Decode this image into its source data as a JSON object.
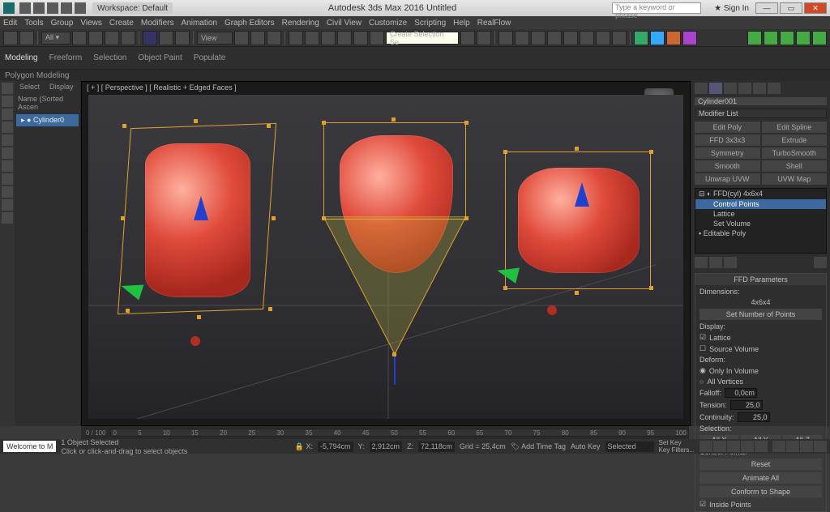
{
  "titlebar": {
    "app_title": "Autodesk 3ds Max 2016   Untitled",
    "search_placeholder": "Type a keyword or phrase",
    "signin": "Sign In",
    "workspace_label": "Workspace: Default"
  },
  "menu": [
    "Edit",
    "Tools",
    "Group",
    "Views",
    "Create",
    "Modifiers",
    "Animation",
    "Graph Editors",
    "Rendering",
    "Civil View",
    "Customize",
    "Scripting",
    "Help",
    "RealFlow"
  ],
  "ribbon": {
    "tabs": [
      "Modeling",
      "Freeform",
      "Selection",
      "Object Paint",
      "Populate"
    ],
    "sub": "Polygon Modeling"
  },
  "toolbar": {
    "sel_set_placeholder": "Create Selection Se",
    "view_dd": "View"
  },
  "scene_explorer": {
    "tabs": [
      "Select",
      "Display"
    ],
    "header": "Name (Sorted Ascen",
    "items": [
      "Cylinder0"
    ]
  },
  "viewport": {
    "label": "[ + ] [ Perspective ] [ Realistic + Edged Faces ]"
  },
  "command_panel": {
    "object_name": "Cylinder001",
    "modifier_list": "Modifier List",
    "buttons": [
      "Edit Poly",
      "Edit Spline",
      "FFD 3x3x3",
      "Extrude",
      "Symmetry",
      "TurboSmooth",
      "Smooth",
      "Shell",
      "Unwrap UVW",
      "UVW Map"
    ],
    "stack": [
      {
        "label": "FFD(cyl) 4x6x4",
        "sel": false,
        "indent": 0
      },
      {
        "label": "Control Points",
        "sel": true,
        "indent": 1
      },
      {
        "label": "Lattice",
        "sel": false,
        "indent": 1
      },
      {
        "label": "Set Volume",
        "sel": false,
        "indent": 1
      },
      {
        "label": "Editable Poly",
        "sel": false,
        "indent": 0
      }
    ],
    "ffd": {
      "title": "FFD Parameters",
      "dims_label": "Dimensions:",
      "dims_value": "4x6x4",
      "set_points": "Set Number of Points",
      "display_label": "Display:",
      "lattice": "Lattice",
      "source_vol": "Source Volume",
      "deform_label": "Deform:",
      "only_in": "Only In Volume",
      "all_vert": "All Vertices",
      "falloff_label": "Falloff:",
      "falloff_val": "0,0cm",
      "tension_label": "Tension:",
      "tension_val": "25,0",
      "continuity_label": "Continuity:",
      "continuity_val": "25,0",
      "selection_label": "Selection:",
      "axes": [
        "All X",
        "All Y",
        "All Z"
      ],
      "ctrl_pts_label": "Control Points:",
      "reset": "Reset",
      "animate_all": "Animate All",
      "conform": "Conform to Shape",
      "inside": "Inside Points"
    }
  },
  "timeline": {
    "frame": "0 / 100",
    "ticks": [
      "0",
      "5",
      "10",
      "15",
      "20",
      "25",
      "30",
      "35",
      "40",
      "45",
      "50",
      "55",
      "60",
      "65",
      "70",
      "75",
      "80",
      "85",
      "90",
      "95",
      "100"
    ]
  },
  "status": {
    "welcome": "Welcome to M",
    "sel": "1 Object Selected",
    "prompt": "Click or click-and-drag to select objects",
    "x": "-5,794cm",
    "y": "2,912cm",
    "z": "72,118cm",
    "grid": "Grid = 25,4cm",
    "add_tag": "Add Time Tag",
    "auto_key": "Auto Key",
    "set_key": "Set Key",
    "selected": "Selected",
    "key_filters": "Key Filters..."
  },
  "colors": {
    "mesh": "#d63a2a",
    "cage": "#e0a030",
    "sel_blue": "#3d6a9e",
    "bg": "#3a3a3a",
    "axis_x": "#d03030",
    "axis_y": "#30c030",
    "axis_z": "#3060e0"
  }
}
